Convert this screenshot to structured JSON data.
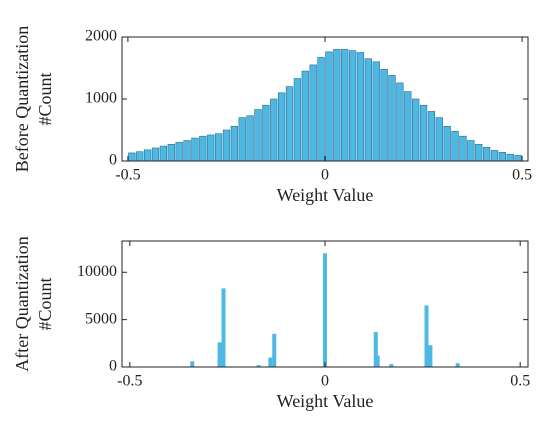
{
  "chart_data": [
    {
      "type": "histogram",
      "ylabel": [
        "Before Quantization",
        "#Count"
      ],
      "xlabel": "Weight Value",
      "bins": [
        -0.5,
        -0.48,
        -0.46,
        -0.44,
        -0.42,
        -0.4,
        -0.38,
        -0.36,
        -0.34,
        -0.32,
        -0.3,
        -0.28,
        -0.26,
        -0.24,
        -0.22,
        -0.2,
        -0.18,
        -0.16,
        -0.14,
        -0.12,
        -0.1,
        -0.08,
        -0.06,
        -0.04,
        -0.02,
        0,
        0.02,
        0.04,
        0.06,
        0.08,
        0.1,
        0.12,
        0.14,
        0.16,
        0.18,
        0.2,
        0.22,
        0.24,
        0.26,
        0.28,
        0.3,
        0.32,
        0.34,
        0.36,
        0.38,
        0.4,
        0.42,
        0.44,
        0.46,
        0.48,
        0.5
      ],
      "values": [
        130,
        150,
        180,
        210,
        240,
        270,
        300,
        330,
        370,
        400,
        420,
        440,
        500,
        560,
        700,
        730,
        830,
        900,
        1000,
        1100,
        1200,
        1330,
        1450,
        1550,
        1670,
        1760,
        1800,
        1800,
        1780,
        1750,
        1650,
        1600,
        1480,
        1380,
        1260,
        1120,
        1000,
        900,
        800,
        700,
        560,
        480,
        400,
        330,
        270,
        220,
        170,
        140,
        110,
        90
      ],
      "color": "#4db8e4",
      "xlim": [
        -0.515,
        0.515
      ],
      "xticks": [
        -0.5,
        0,
        0.5
      ],
      "ylim": [
        0,
        2000
      ],
      "yticks": [
        0,
        1000,
        2000
      ]
    },
    {
      "type": "bar",
      "ylabel": [
        "After Quantization",
        "#Count"
      ],
      "xlabel": "Weight Value",
      "x": [
        -0.34,
        -0.27,
        -0.26,
        -0.17,
        -0.14,
        -0.13,
        0,
        0.13,
        0.135,
        0.17,
        0.26,
        0.27,
        0.34
      ],
      "values": [
        600,
        2600,
        8300,
        200,
        1000,
        3500,
        12000,
        3700,
        1200,
        300,
        6500,
        2300,
        400
      ],
      "color": "#4db8e4",
      "xlim": [
        -0.52,
        0.52
      ],
      "xticks": [
        -0.5,
        0,
        0.5
      ],
      "ylim": [
        0,
        13300
      ],
      "yticks": [
        0,
        5000,
        10000
      ]
    }
  ]
}
